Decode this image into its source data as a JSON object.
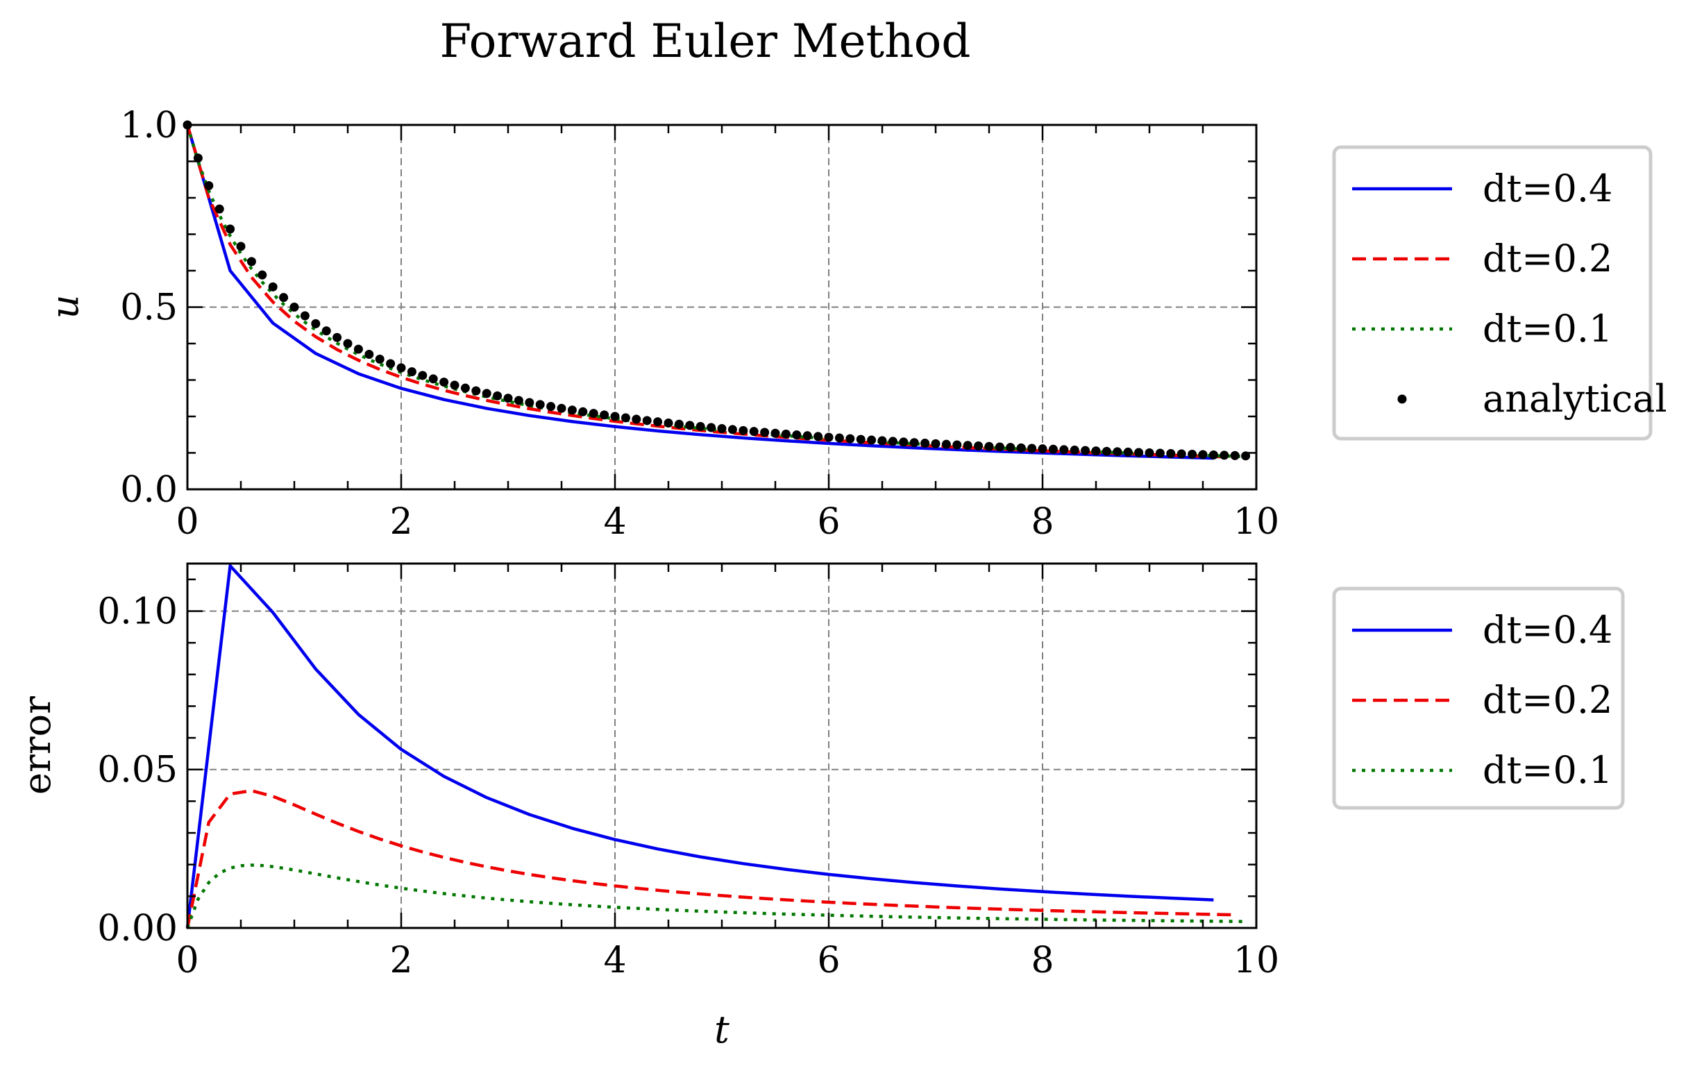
{
  "chart_data": [
    {
      "type": "line",
      "title": "Forward Euler Method",
      "xlabel": "",
      "ylabel": "u",
      "xlim": [
        0,
        10
      ],
      "ylim": [
        0,
        1
      ],
      "xticks": [
        0,
        2,
        4,
        6,
        8,
        10
      ],
      "yticks": [
        0,
        0.5,
        1
      ],
      "ytick_labels": [
        "0.0",
        "0.5",
        "1.0"
      ],
      "grid": true,
      "legend_position": "outside-right",
      "series": [
        {
          "name": "dt=0.4",
          "style": "solid",
          "color": "#0000ee",
          "function": "euler",
          "dt": 0.4
        },
        {
          "name": "dt=0.2",
          "style": "dashed",
          "color": "#ee0000",
          "function": "euler",
          "dt": 0.2
        },
        {
          "name": "dt=0.1",
          "style": "dotted",
          "color": "#007700",
          "function": "euler",
          "dt": 0.1
        },
        {
          "name": "analytical",
          "style": "markers",
          "color": "#000000",
          "function": "analytical",
          "dt": 0.1
        }
      ]
    },
    {
      "type": "line",
      "title": "",
      "xlabel": "t",
      "ylabel": "error",
      "xlim": [
        0,
        10
      ],
      "ylim": [
        0,
        0.115
      ],
      "xticks": [
        0,
        2,
        4,
        6,
        8,
        10
      ],
      "yticks": [
        0,
        0.05,
        0.1
      ],
      "ytick_labels": [
        "0.00",
        "0.05",
        "0.10"
      ],
      "grid": true,
      "legend_position": "outside-right",
      "series": [
        {
          "name": "dt=0.4",
          "style": "solid",
          "color": "#0000ee",
          "function": "error",
          "dt": 0.4
        },
        {
          "name": "dt=0.2",
          "style": "dashed",
          "color": "#ee0000",
          "function": "error",
          "dt": 0.2
        },
        {
          "name": "dt=0.1",
          "style": "dotted",
          "color": "#007700",
          "function": "error",
          "dt": 0.1
        }
      ]
    }
  ]
}
